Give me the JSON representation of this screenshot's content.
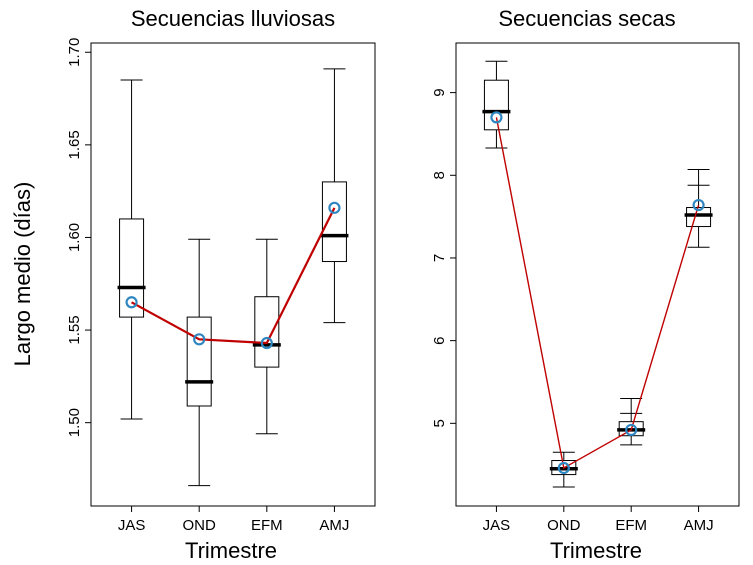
{
  "colors": {
    "median": "#000000",
    "mean_line": "#c00000",
    "mean_marker": "#2e86c1",
    "box": "#000000"
  },
  "shared": {
    "xlabel": "Trimestre",
    "ylabel": "Largo medio (días)"
  },
  "chart_data": [
    {
      "type": "box",
      "title": "Secuencias lluviosas",
      "xlabel": "Trimestre",
      "ylabel": "Largo medio (días)",
      "categories": [
        "JAS",
        "OND",
        "EFM",
        "AMJ"
      ],
      "ylim": [
        1.455,
        1.705
      ],
      "yticks": [
        1.5,
        1.55,
        1.6,
        1.65,
        1.7
      ],
      "ytick_labels": [
        "1.50",
        "1.55",
        "1.60",
        "1.65",
        "1.70"
      ],
      "boxes": [
        {
          "whisker_low": 1.502,
          "q1": 1.557,
          "median": 1.573,
          "q3": 1.61,
          "whisker_high": 1.685
        },
        {
          "whisker_low": 1.466,
          "q1": 1.509,
          "median": 1.522,
          "q3": 1.557,
          "whisker_high": 1.599
        },
        {
          "whisker_low": 1.494,
          "q1": 1.53,
          "median": 1.542,
          "q3": 1.568,
          "whisker_high": 1.599
        },
        {
          "whisker_low": 1.554,
          "q1": 1.587,
          "median": 1.601,
          "q3": 1.63,
          "whisker_high": 1.691
        }
      ],
      "series": [
        {
          "type": "line",
          "values": [
            1.565,
            1.545,
            1.543,
            1.616
          ]
        }
      ]
    },
    {
      "type": "box",
      "title": "Secuencias secas",
      "xlabel": "Trimestre",
      "ylabel": "",
      "categories": [
        "JAS",
        "OND",
        "EFM",
        "AMJ"
      ],
      "ylim": [
        4.0,
        9.6
      ],
      "yticks": [
        5,
        6,
        7,
        8,
        9
      ],
      "ytick_labels": [
        "5",
        "6",
        "7",
        "8",
        "9"
      ],
      "boxes": [
        {
          "whisker_low": 8.33,
          "q1": 8.55,
          "median": 8.77,
          "q3": 9.15,
          "whisker_high": 9.38
        },
        {
          "whisker_low": 4.23,
          "q1": 4.38,
          "median": 4.45,
          "q3": 4.55,
          "whisker_high": 4.65
        },
        {
          "whisker_low": 4.74,
          "q1": 4.85,
          "median": 4.92,
          "q3": 5.02,
          "whisker_high": 5.12
        },
        {
          "whisker_low": 7.13,
          "q1": 7.38,
          "median": 7.52,
          "q3": 7.61,
          "whisker_high": 7.88
        }
      ],
      "extra_caps": [
        {
          "category": "EFM",
          "value": 5.3
        },
        {
          "category": "AMJ",
          "value": 8.07
        }
      ],
      "series": [
        {
          "type": "line",
          "values": [
            8.7,
            4.46,
            4.92,
            7.64
          ]
        }
      ]
    }
  ]
}
